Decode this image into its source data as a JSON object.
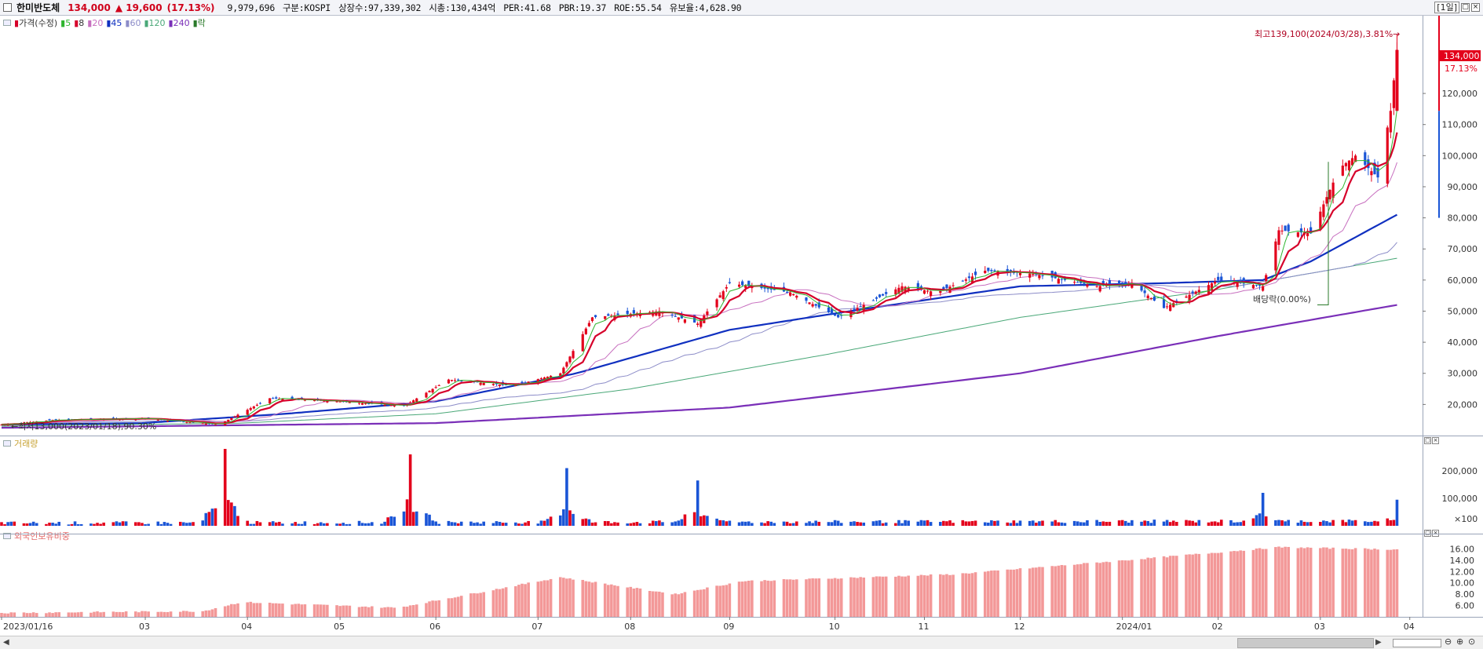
{
  "header": {
    "name": "한미반도체",
    "price": "134,000",
    "change": "▲ 19,600",
    "change_pct": "(17.13%)",
    "volume": "9,979,696",
    "market": "구분:KOSPI",
    "shares": "상장수:97,339,302",
    "mcap": "시총:130,434억",
    "per": "PER:41.68",
    "pbr": "PBR:19.37",
    "roe": "ROE:55.54",
    "float": "유보율:4,628.90",
    "period": "[1일]"
  },
  "colors": {
    "up": "#e3001b",
    "down": "#1a55d6",
    "ma5": "#2fb52f",
    "ma8": "#d6002a",
    "ma20": "#c76fbf",
    "ma45": "#1030c0",
    "ma60": "#8c8cc8",
    "ma120": "#4aa878",
    "ma240": "#7a2fb8",
    "foreign": "#f39898"
  },
  "price_pane": {
    "legend": [
      {
        "label": "가격(수정)",
        "color": "#d6002a"
      },
      {
        "label": "5",
        "color": "#2fb52f"
      },
      {
        "label": "8",
        "color": "#d6002a"
      },
      {
        "label": "20",
        "color": "#c76fbf"
      },
      {
        "label": "45",
        "color": "#1030c0"
      },
      {
        "label": "60",
        "color": "#8c8cc8"
      },
      {
        "label": "120",
        "color": "#4aa878"
      },
      {
        "label": "240",
        "color": "#7a2fb8"
      },
      {
        "label": "락",
        "color": "#2a7a2a"
      }
    ],
    "high_note": "최고139,100(2024/03/28),3.81%→",
    "low_note": "←최저13,000(2023/01/18),90.30%",
    "dividend_note": "배당락(0.00%)",
    "current_tag": "134,000",
    "current_pct": "17.13%"
  },
  "volume_pane": {
    "title": "거래량",
    "unit_label": "×100"
  },
  "foreign_pane": {
    "title": "외국인보유비중"
  },
  "chart_data": [
    {
      "type": "line",
      "title": "",
      "xlabel": "",
      "ylabel": "",
      "ylim": [
        10000,
        145000
      ],
      "yticks": [
        20000,
        30000,
        40000,
        50000,
        60000,
        70000,
        80000,
        90000,
        100000,
        110000,
        120000
      ],
      "x_tick_labels": [
        "2023/01/16",
        "03",
        "04",
        "05",
        "06",
        "07",
        "08",
        "09",
        "10",
        "11",
        "12",
        "2024/01",
        "02",
        "03",
        "04"
      ],
      "series": [
        {
          "name": "가격(수정)",
          "x": [
            "2023-01-16",
            "2023-02-01",
            "2023-03-01",
            "2023-03-25",
            "2023-04-10",
            "2023-05-01",
            "2023-05-22",
            "2023-06-05",
            "2023-06-25",
            "2023-07-10",
            "2023-07-20",
            "2023-08-10",
            "2023-08-22",
            "2023-09-01",
            "2023-09-20",
            "2023-10-05",
            "2023-10-25",
            "2023-11-05",
            "2023-11-20",
            "2023-12-05",
            "2023-12-25",
            "2024-01-05",
            "2024-01-15",
            "2024-02-01",
            "2024-02-15",
            "2024-02-20",
            "2024-03-01",
            "2024-03-10",
            "2024-03-15",
            "2024-03-22",
            "2024-03-26",
            "2024-03-28"
          ],
          "values": [
            13500,
            15000,
            15500,
            13500,
            22000,
            21000,
            19500,
            28000,
            26000,
            30000,
            48000,
            50000,
            46000,
            59000,
            56000,
            48000,
            58000,
            56000,
            63000,
            62000,
            58000,
            59000,
            51000,
            60000,
            58000,
            76000,
            75000,
            96000,
            100000,
            93000,
            114400,
            134000
          ]
        },
        {
          "name": "45",
          "x": [
            "2023-01-16",
            "2023-03-01",
            "2023-04-15",
            "2023-06-01",
            "2023-07-15",
            "2023-09-01",
            "2023-10-15",
            "2023-12-01",
            "2024-01-15",
            "2024-02-15",
            "2024-03-01",
            "2024-03-28"
          ],
          "values": [
            13500,
            14000,
            17000,
            21000,
            30000,
            44000,
            51000,
            58000,
            59000,
            60000,
            66000,
            81000
          ]
        },
        {
          "name": "120",
          "x": [
            "2023-01-16",
            "2023-04-01",
            "2023-06-01",
            "2023-08-01",
            "2023-10-01",
            "2023-12-01",
            "2024-02-01",
            "2024-03-28"
          ],
          "values": [
            13000,
            14000,
            17000,
            25000,
            36000,
            48000,
            57000,
            67000
          ]
        },
        {
          "name": "240",
          "x": [
            "2023-01-16",
            "2023-06-01",
            "2023-09-01",
            "2023-12-01",
            "2024-02-01",
            "2024-03-28"
          ],
          "values": [
            12500,
            14000,
            19000,
            30000,
            42000,
            52000
          ]
        }
      ]
    },
    {
      "type": "bar",
      "title": "거래량",
      "ylim": [
        0,
        300000
      ],
      "yticks": [
        100000,
        200000
      ],
      "series": [
        {
          "name": "거래량",
          "x": [
            "2023-03-27",
            "2023-05-24",
            "2023-07-12",
            "2023-08-22",
            "2024-02-15",
            "2024-03-28"
          ],
          "values": [
            280000,
            260000,
            210000,
            165000,
            120000,
            95000
          ]
        }
      ]
    },
    {
      "type": "bar",
      "title": "외국인보유비중",
      "ylim": [
        4,
        18
      ],
      "yticks": [
        6.0,
        8.0,
        10.0,
        12.0,
        14.0,
        16.0
      ],
      "series": [
        {
          "name": "외국인보유비중",
          "x": [
            "2023-01-16",
            "2023-03-20",
            "2023-04-01",
            "2023-05-20",
            "2023-07-10",
            "2023-08-15",
            "2023-09-05",
            "2023-11-10",
            "2024-01-01",
            "2024-02-20",
            "2024-03-28"
          ],
          "values": [
            4.7,
            5.0,
            6.6,
            5.6,
            11.0,
            8.0,
            10.3,
            11.5,
            13.9,
            16.3,
            15.9
          ]
        }
      ]
    }
  ]
}
